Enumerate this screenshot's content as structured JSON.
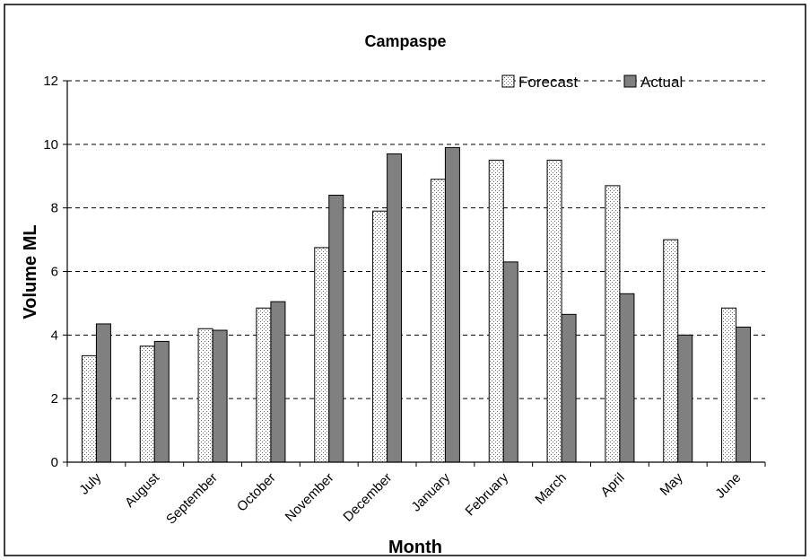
{
  "chart_data": {
    "type": "bar",
    "title": "Campaspe",
    "xlabel": "Month",
    "ylabel": "Volume ML",
    "ylim": [
      0,
      12
    ],
    "yticks": [
      0,
      2,
      4,
      6,
      8,
      10,
      12
    ],
    "grid": "horizontal-dashed",
    "legend_position": "top-right",
    "categories": [
      "July",
      "August",
      "September",
      "October",
      "November",
      "December",
      "January",
      "February",
      "March",
      "April",
      "May",
      "June"
    ],
    "series": [
      {
        "name": "Forecast",
        "pattern": "dotted",
        "color": "#ffffff",
        "values": [
          3.35,
          3.65,
          4.2,
          4.85,
          6.75,
          7.9,
          8.9,
          9.5,
          9.5,
          8.7,
          7.0,
          4.85
        ]
      },
      {
        "name": "Actual",
        "pattern": "solid",
        "color": "#808080",
        "values": [
          4.35,
          3.8,
          4.15,
          5.05,
          8.4,
          9.7,
          9.9,
          6.3,
          4.65,
          5.3,
          4.0,
          4.25
        ]
      }
    ]
  }
}
